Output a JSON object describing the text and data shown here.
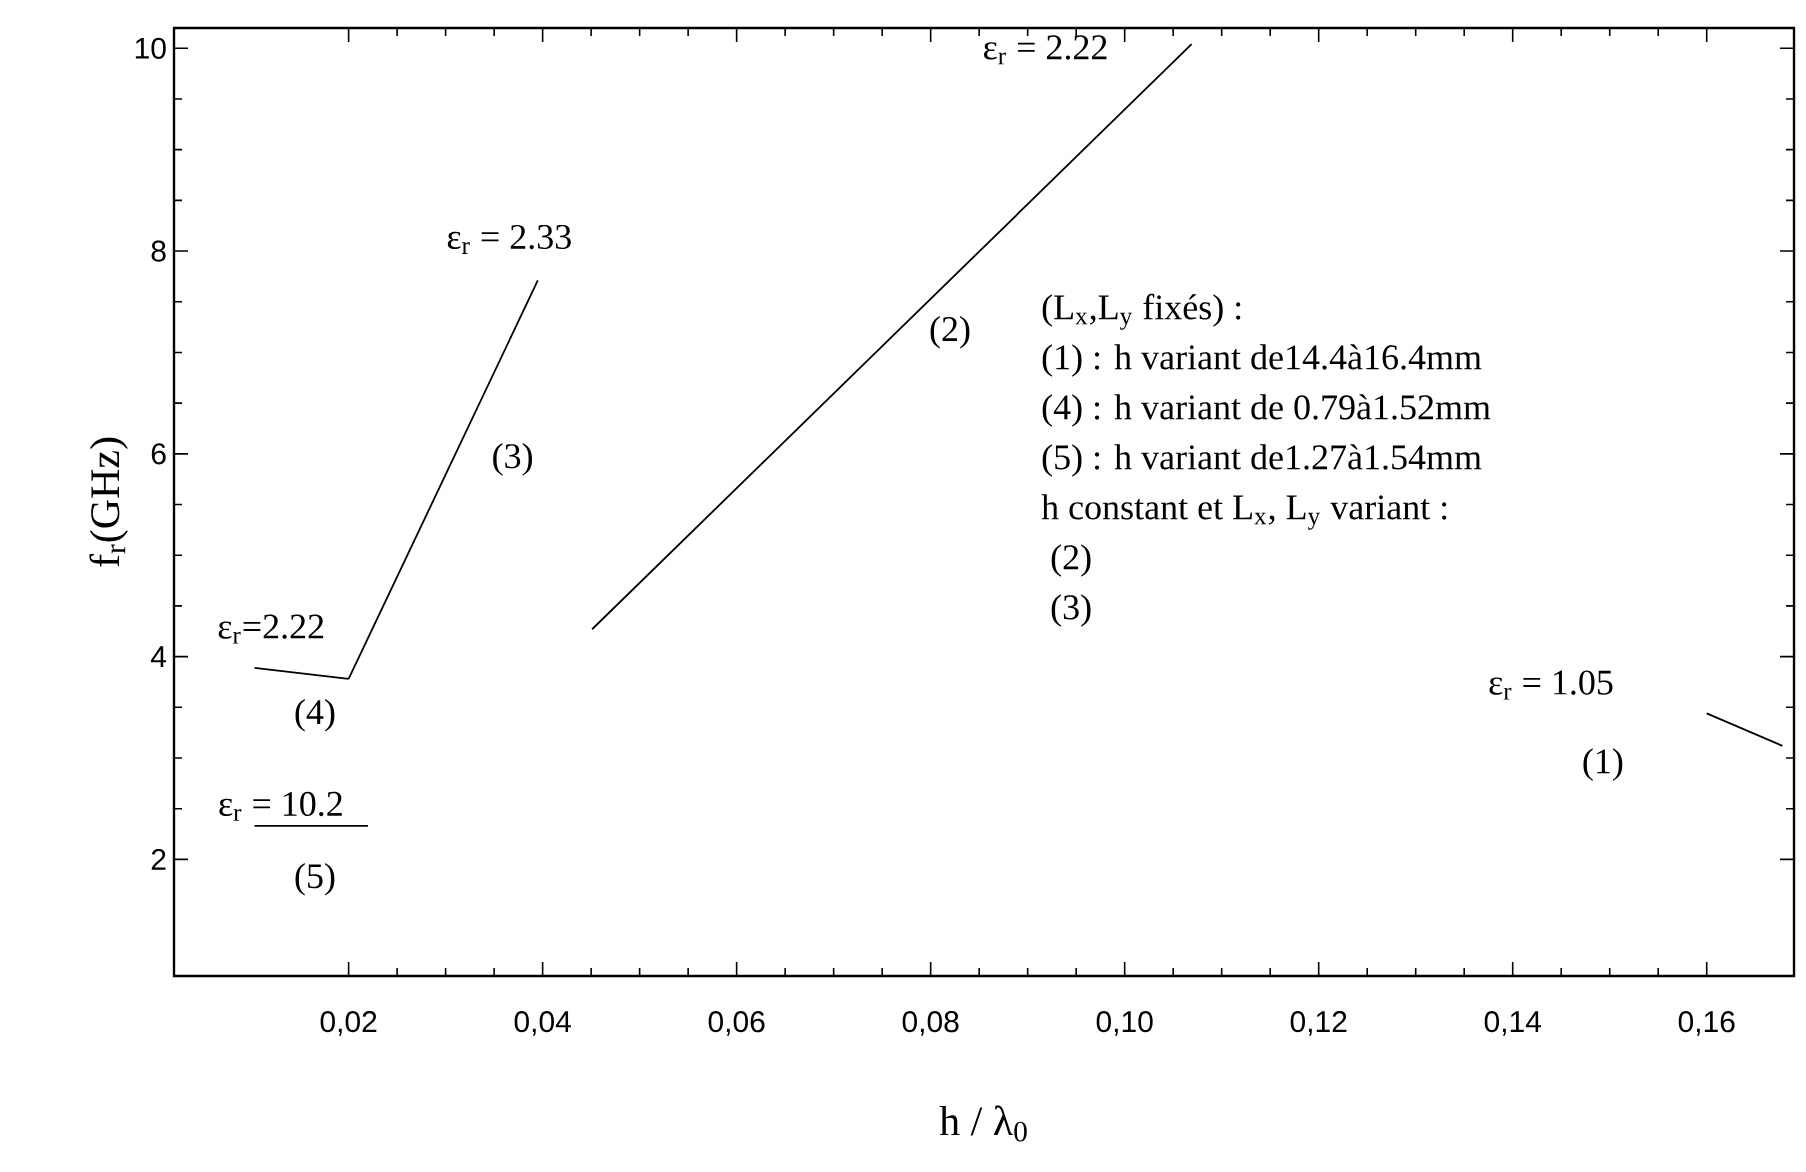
{
  "chart_data": {
    "type": "line",
    "xlabel": "h / λ$_{0}$",
    "ylabel": "f$_{r}$(GHz)",
    "xlim": [
      0.002,
      0.169
    ],
    "ylim": [
      0.85,
      10.2
    ],
    "xticks": [
      {
        "value": 0.02,
        "label": "0,02"
      },
      {
        "value": 0.04,
        "label": "0,04"
      },
      {
        "value": 0.06,
        "label": "0,06"
      },
      {
        "value": 0.08,
        "label": "0,08"
      },
      {
        "value": 0.1,
        "label": "0,10"
      },
      {
        "value": 0.12,
        "label": "0,12"
      },
      {
        "value": 0.14,
        "label": "0,14"
      },
      {
        "value": 0.16,
        "label": "0,16"
      }
    ],
    "yticks": [
      2,
      4,
      6,
      8,
      10
    ],
    "series": [
      {
        "color": "#000000",
        "x": [
          0.16,
          0.1678
        ],
        "values": [
          3.44,
          3.12
        ]
      },
      {
        "color": "#000000",
        "x": [
          0.0451,
          0.1069
        ],
        "values": [
          4.27,
          10.04
        ]
      },
      {
        "color": "#000000",
        "x": [
          0.02,
          0.0395
        ],
        "values": [
          3.78,
          7.71
        ]
      },
      {
        "color": "#000000",
        "x": [
          0.0103,
          0.02
        ],
        "values": [
          3.89,
          3.78
        ]
      },
      {
        "color": "#000000",
        "x": [
          0.0103,
          0.022
        ],
        "values": [
          2.33,
          2.33
        ]
      }
    ],
    "annotations": [
      "ε$_{r}$ = 1.05",
      "(1)",
      "ε$_{r}$ = 2.22",
      "(2)",
      "ε$_{r}$ = 2.33",
      "(3)",
      "ε$_{r}$=2.22",
      "(4)",
      "ε$_{r}$ = 10.2",
      "(5)",
      "(L$_{x}$,L$_{y}$ fixés) :",
      "(1)   : h variant de14.4à16.4mm",
      "(4)   : h variant de 0.79à1.52mm",
      "(5)   : h variant de1.27à1.54mm",
      "h constant et L$_{x}$, L$_{y}$ variant :",
      " (2)",
      " (3)"
    ],
    "line_style": "solid",
    "marker": "none",
    "grid": false
  }
}
